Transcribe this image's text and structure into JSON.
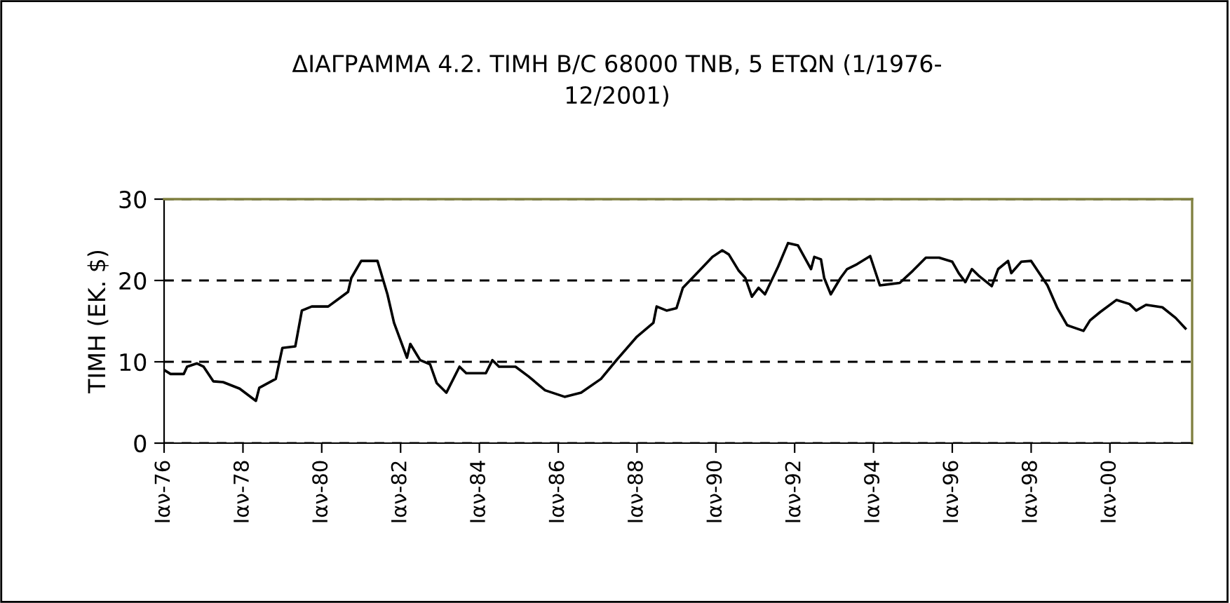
{
  "chart_data": {
    "type": "line",
    "title": "ΔΙΑΓΡΑΜΜΑ 4.2. ΤΙΜΗ Β/C 68000 ΤΝΒ, 5 ΕΤΩΝ (1/1976-\n12/2001)",
    "ylabel": "ΤΙΜΗ (ΕΚ. $)",
    "x": [
      "1976-01",
      "1976-03",
      "1976-07",
      "1976-08",
      "1976-11",
      "1977-01",
      "1977-04",
      "1977-07",
      "1977-12",
      "1978-05",
      "1978-06",
      "1978-11",
      "1979-01",
      "1979-05",
      "1979-07",
      "1979-10",
      "1980-03",
      "1980-06",
      "1980-09",
      "1980-10",
      "1981-01",
      "1981-06",
      "1981-09",
      "1981-11",
      "1982-03",
      "1982-04",
      "1982-07",
      "1982-10",
      "1982-12",
      "1983-03",
      "1983-07",
      "1983-09",
      "1984-03",
      "1984-05",
      "1984-07",
      "1984-12",
      "1985-04",
      "1985-09",
      "1986-03",
      "1986-08",
      "1987-02",
      "1987-07",
      "1988-01",
      "1988-06",
      "1988-07",
      "1988-10",
      "1989-01",
      "1989-03",
      "1989-08",
      "1989-12",
      "1990-03",
      "1990-05",
      "1990-08",
      "1990-10",
      "1990-12",
      "1991-02",
      "1991-04",
      "1991-06",
      "1991-08",
      "1991-11",
      "1992-02",
      "1992-06",
      "1992-07",
      "1992-09",
      "1992-10",
      "1992-12",
      "1993-03",
      "1993-05",
      "1993-08",
      "1993-12",
      "1994-03",
      "1994-09",
      "1995-01",
      "1995-05",
      "1995-09",
      "1996-01",
      "1996-03",
      "1996-05",
      "1996-07",
      "1996-09",
      "1997-01",
      "1997-03",
      "1997-06",
      "1997-07",
      "1997-10",
      "1998-01",
      "1998-04",
      "1998-06",
      "1998-09",
      "1998-12",
      "1999-05",
      "1999-07",
      "1999-10",
      "2000-03",
      "2000-07",
      "2000-09",
      "2000-12",
      "2001-05",
      "2001-09",
      "2001-12"
    ],
    "series": [
      {
        "color": "#000000",
        "values": [
          9.0,
          8.5,
          8.5,
          9.4,
          9.8,
          9.4,
          7.6,
          7.5,
          6.7,
          5.2,
          6.8,
          7.9,
          11.7,
          11.9,
          16.3,
          16.8,
          16.8,
          17.7,
          18.6,
          20.3,
          22.4,
          22.4,
          18.3,
          14.8,
          10.5,
          12.2,
          10.2,
          9.7,
          7.4,
          6.2,
          9.4,
          8.6,
          8.6,
          10.2,
          9.4,
          9.4,
          8.2,
          6.5,
          5.7,
          6.2,
          7.9,
          10.3,
          13.1,
          14.8,
          16.8,
          16.3,
          16.6,
          19.1,
          21.2,
          22.9,
          23.7,
          23.2,
          21.2,
          20.3,
          18.0,
          19.1,
          18.3,
          20.0,
          21.7,
          24.6,
          24.3,
          21.4,
          22.9,
          22.6,
          20.3,
          18.3,
          20.3,
          21.4,
          22.0,
          23.0,
          19.4,
          19.7,
          21.2,
          22.8,
          22.8,
          22.3,
          20.9,
          19.8,
          21.4,
          20.6,
          19.3,
          21.4,
          22.4,
          20.9,
          22.3,
          22.4,
          20.6,
          19.4,
          16.6,
          14.5,
          13.8,
          15.1,
          16.1,
          17.6,
          17.1,
          16.3,
          17.0,
          16.7,
          15.4,
          14.1
        ]
      }
    ],
    "xlim": [
      "1976-01",
      "2002-02"
    ],
    "xticks": [
      {
        "value": "1976-01",
        "label": "Ιαν-76"
      },
      {
        "value": "1978-01",
        "label": "Ιαν-78"
      },
      {
        "value": "1980-01",
        "label": "Ιαν-80"
      },
      {
        "value": "1982-01",
        "label": "Ιαν-82"
      },
      {
        "value": "1984-01",
        "label": "Ιαν-84"
      },
      {
        "value": "1986-01",
        "label": "Ιαν-86"
      },
      {
        "value": "1988-01",
        "label": "Ιαν-88"
      },
      {
        "value": "1990-01",
        "label": "Ιαν-90"
      },
      {
        "value": "1992-01",
        "label": "Ιαν-92"
      },
      {
        "value": "1994-01",
        "label": "Ιαν-94"
      },
      {
        "value": "1996-01",
        "label": "Ιαν-96"
      },
      {
        "value": "1998-01",
        "label": "Ιαν-98"
      },
      {
        "value": "2000-01",
        "label": "Ιαν-00"
      }
    ],
    "ylim": [
      0,
      30
    ],
    "yticks": [
      0,
      10,
      20,
      30
    ],
    "grid": "y",
    "legend": false,
    "marker": "none",
    "line_style": "solid"
  }
}
